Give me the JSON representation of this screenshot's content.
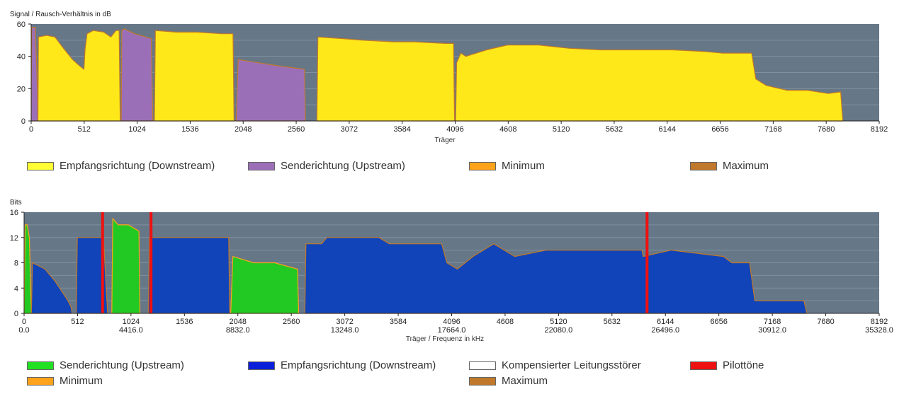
{
  "colors": {
    "plot_bg": "#667788",
    "downstream_snr": "#ffe81a",
    "upstream_snr": "#9b6fb8",
    "minimum": "#ffa31a",
    "maximum": "#c0782a",
    "upstream_bits": "#22c922",
    "downstream_bits": "#1144b8",
    "pilot": "#ee1111",
    "noise": "#ffffff"
  },
  "snr_chart": {
    "ylabel": "Signal / Rausch-Verhältnis in dB",
    "xlabel": "Träger",
    "ylim": [
      0,
      60
    ],
    "yticks": [
      "0",
      "20",
      "40",
      "60"
    ],
    "xticks": [
      "0",
      "512",
      "1024",
      "1536",
      "2048",
      "2560",
      "3072",
      "3584",
      "4096",
      "4608",
      "5120",
      "5632",
      "6144",
      "6656",
      "7168",
      "7680",
      "8192"
    ],
    "legend": [
      {
        "label": "Empfangsrichtung (Downstream)",
        "color": "#ffe81a"
      },
      {
        "label": "Senderichtung (Upstream)",
        "color": "#9b6fb8"
      },
      {
        "label": "Minimum",
        "color": "#ffa31a"
      },
      {
        "label": "Maximum",
        "color": "#c0782a"
      }
    ]
  },
  "bits_chart": {
    "ylabel": "Bits",
    "xlabel": "Träger / Frequenz in kHz",
    "ylim": [
      0,
      16
    ],
    "yticks": [
      "0",
      "4",
      "8",
      "12",
      "16"
    ],
    "xticks": [
      "0",
      "512",
      "1024",
      "1536",
      "2048",
      "2560",
      "3072",
      "3584",
      "4096",
      "4608",
      "5120",
      "5632",
      "6144",
      "6656",
      "7168",
      "7680",
      "8192"
    ],
    "freq_ticks": [
      "0.0",
      "4416.0",
      "8832.0",
      "13248.0",
      "17664.0",
      "22080.0",
      "26496.0",
      "30912.0",
      "35328.0"
    ],
    "legend": [
      {
        "label": "Senderichtung (Upstream)",
        "color": "#22e022"
      },
      {
        "label": "Empfangsrichtung (Downstream)",
        "color": "#0a1fd8"
      },
      {
        "label": "Kompensierter Leitungsstörer",
        "color": "#ffffff"
      },
      {
        "label": "Pilottöne",
        "color": "#ee1111"
      },
      {
        "label": "Minimum",
        "color": "#ffa31a"
      },
      {
        "label": "Maximum",
        "color": "#c0782a"
      }
    ]
  },
  "chart_data": [
    {
      "type": "area",
      "ylabel": "Signal / Rausch-Verhältnis in dB",
      "xlabel": "Träger",
      "xlim": [
        0,
        8192
      ],
      "ylim": [
        0,
        60
      ],
      "grid": true,
      "legend_position": "bottom",
      "series": [
        {
          "name": "Senderichtung (Upstream)",
          "segments": [
            [
              [
                0,
                0
              ],
              [
                5,
                58
              ],
              [
                40,
                58
              ],
              [
                60,
                20
              ],
              [
                64,
                0
              ]
            ],
            [
              [
                870,
                0
              ],
              [
                875,
                56
              ],
              [
                900,
                57
              ],
              [
                1000,
                54
              ],
              [
                1160,
                51
              ],
              [
                1175,
                0
              ]
            ],
            [
              [
                1980,
                0
              ],
              [
                2000,
                38
              ],
              [
                2200,
                36
              ],
              [
                2400,
                34
              ],
              [
                2640,
                32
              ],
              [
                2650,
                0
              ]
            ]
          ]
        },
        {
          "name": "Empfangsrichtung (Downstream)",
          "segments": [
            [
              [
                65,
                0
              ],
              [
                70,
                52
              ],
              [
                150,
                53
              ],
              [
                230,
                52
              ],
              [
                300,
                46
              ],
              [
                400,
                38
              ],
              [
                470,
                34
              ],
              [
                510,
                32
              ],
              [
                520,
                44
              ],
              [
                540,
                54
              ],
              [
                600,
                56
              ],
              [
                700,
                55
              ],
              [
                770,
                52
              ],
              [
                820,
                56
              ],
              [
                850,
                56
              ],
              [
                860,
                0
              ]
            ],
            [
              [
                1190,
                0
              ],
              [
                1200,
                56
              ],
              [
                1400,
                55
              ],
              [
                1600,
                55
              ],
              [
                1840,
                54
              ],
              [
                1950,
                54
              ],
              [
                1960,
                0
              ]
            ],
            [
              [
                2760,
                0
              ],
              [
                2770,
                52
              ],
              [
                3000,
                51
              ],
              [
                3200,
                50
              ],
              [
                3500,
                49
              ],
              [
                3700,
                49
              ],
              [
                4000,
                48
              ],
              [
                4080,
                48
              ],
              [
                4090,
                0
              ]
            ],
            [
              [
                4100,
                0
              ],
              [
                4110,
                36
              ],
              [
                4150,
                42
              ],
              [
                4200,
                40
              ],
              [
                4400,
                44
              ],
              [
                4600,
                47
              ],
              [
                4900,
                47
              ],
              [
                5200,
                45
              ],
              [
                5500,
                44
              ],
              [
                5800,
                44
              ],
              [
                6200,
                44
              ],
              [
                6500,
                43
              ],
              [
                6680,
                42
              ],
              [
                6960,
                42
              ],
              [
                7000,
                26
              ],
              [
                7100,
                22
              ],
              [
                7300,
                19
              ],
              [
                7500,
                19
              ],
              [
                7700,
                17
              ],
              [
                7820,
                18
              ],
              [
                7840,
                0
              ]
            ]
          ]
        },
        {
          "name": "Minimum",
          "approximate": true
        },
        {
          "name": "Maximum",
          "approximate": true
        }
      ]
    },
    {
      "type": "area",
      "ylabel": "Bits",
      "xlabel": "Träger / Frequenz in kHz",
      "xlim": [
        0,
        8192
      ],
      "ylim": [
        0,
        16
      ],
      "grid": true,
      "legend_position": "bottom",
      "series": [
        {
          "name": "Senderichtung (Upstream)",
          "segments": [
            [
              [
                0,
                0
              ],
              [
                10,
                14
              ],
              [
                30,
                14
              ],
              [
                50,
                12
              ],
              [
                70,
                0
              ]
            ],
            [
              [
                840,
                0
              ],
              [
                850,
                15
              ],
              [
                900,
                14
              ],
              [
                1000,
                14
              ],
              [
                1100,
                13
              ],
              [
                1110,
                0
              ]
            ],
            [
              [
                1980,
                0
              ],
              [
                2000,
                9
              ],
              [
                2200,
                8
              ],
              [
                2400,
                8
              ],
              [
                2620,
                7
              ],
              [
                2630,
                0
              ]
            ]
          ]
        },
        {
          "name": "Empfangsrichtung (Downstream)",
          "segments": [
            [
              [
                70,
                0
              ],
              [
                80,
                8
              ],
              [
                200,
                7
              ],
              [
                300,
                5
              ],
              [
                380,
                3
              ],
              [
                420,
                2
              ],
              [
                450,
                1
              ],
              [
                460,
                0
              ]
            ],
            [
              [
                500,
                0
              ],
              [
                510,
                12
              ],
              [
                760,
                12
              ],
              [
                800,
                0
              ]
            ],
            [
              [
                1190,
                0
              ],
              [
                1200,
                12
              ],
              [
                1960,
                12
              ],
              [
                1970,
                0
              ]
            ],
            [
              [
                2690,
                0
              ],
              [
                2700,
                11
              ],
              [
                2850,
                11
              ],
              [
                2900,
                12
              ],
              [
                3400,
                12
              ],
              [
                3500,
                11
              ],
              [
                3700,
                11
              ],
              [
                4000,
                11
              ],
              [
                4050,
                8
              ],
              [
                4150,
                7
              ],
              [
                4300,
                9
              ],
              [
                4500,
                11
              ],
              [
                4700,
                9
              ],
              [
                5000,
                10
              ],
              [
                5500,
                10
              ],
              [
                5920,
                10
              ],
              [
                5930,
                9
              ],
              [
                6200,
                10
              ],
              [
                6700,
                9
              ],
              [
                6780,
                8
              ],
              [
                6950,
                8
              ],
              [
                7000,
                2
              ],
              [
                7100,
                2
              ],
              [
                7470,
                2
              ],
              [
                7500,
                0
              ]
            ]
          ]
        },
        {
          "name": "Kompensierter Leitungsstörer",
          "segments": []
        },
        {
          "name": "Pilottöne",
          "x": [
            752,
            1216,
            5968
          ]
        },
        {
          "name": "Minimum",
          "approximate": true
        },
        {
          "name": "Maximum",
          "approximate": true
        }
      ]
    }
  ]
}
